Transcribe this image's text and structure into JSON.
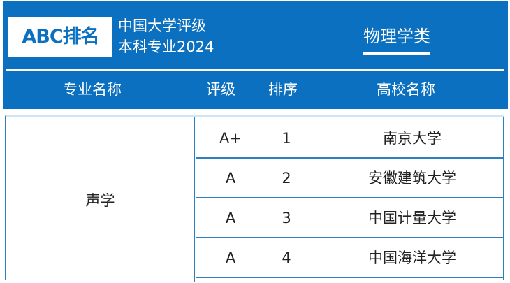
{
  "header": {
    "logo": "ABC排名",
    "subtitle_line1": "中国大学评级",
    "subtitle_line2": "本科专业2024",
    "category": "物理学类",
    "brand_color": "#0A70BF"
  },
  "columns": [
    "专业名称",
    "评级",
    "排序",
    "高校名称"
  ],
  "major": "声学",
  "rows": [
    {
      "grade": "A+",
      "rank": "1",
      "school": "南京大学"
    },
    {
      "grade": "A",
      "rank": "2",
      "school": "安徽建筑大学"
    },
    {
      "grade": "A",
      "rank": "3",
      "school": "中国计量大学"
    },
    {
      "grade": "A",
      "rank": "4",
      "school": "中国海洋大学"
    }
  ]
}
